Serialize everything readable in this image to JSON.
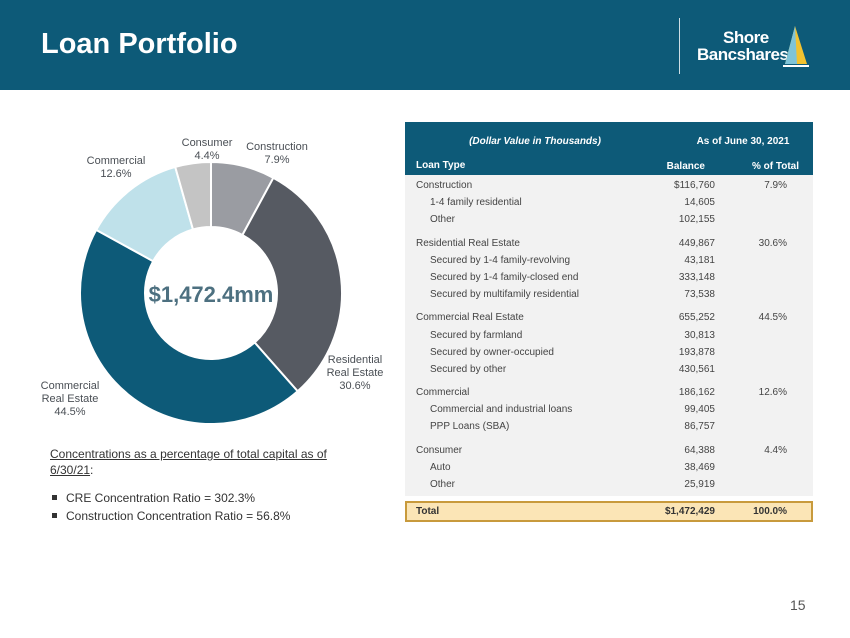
{
  "header": {
    "title": "Loan Portfolio"
  },
  "logo": {
    "line1": "Shore",
    "line2": "Bancshares"
  },
  "chart_data": {
    "type": "pie",
    "center_label": "$1,472.4mm",
    "slices": [
      {
        "name": "Construction",
        "label": "Construction",
        "pct_label": "7.9%",
        "value": 7.9,
        "color": "#9a9ca2"
      },
      {
        "name": "Residential Real Estate",
        "label": "Residential Real Estate",
        "pct_label": "30.6%",
        "value": 30.6,
        "color": "#565a62"
      },
      {
        "name": "Commercial Real Estate",
        "label": "Commercial Real Estate",
        "pct_label": "44.5%",
        "value": 44.5,
        "color": "#0d5a78"
      },
      {
        "name": "Commercial",
        "label": "Commercial",
        "pct_label": "12.6%",
        "value": 12.6,
        "color": "#bfe1ea"
      },
      {
        "name": "Consumer",
        "label": "Consumer",
        "pct_label": "4.4%",
        "value": 4.4,
        "color": "#c4c4c4"
      }
    ]
  },
  "notes": {
    "lead_text": "Concentrations as a percentage of total capital as of 6/30/21",
    "lead_suffix": ":",
    "bullets": [
      "CRE Concentration Ratio = 302.3%",
      "Construction Concentration Ratio = 56.8%"
    ]
  },
  "table": {
    "header": {
      "dollar_note": "(Dollar Value in Thousands)",
      "as_of": "As of June 30, 2021",
      "col_type": "Loan Type",
      "col_balance": "Balance",
      "col_pct": "% of Total"
    },
    "rows": [
      {
        "label": "Construction",
        "balance": "$116,760",
        "pct": "7.9%",
        "sub": false
      },
      {
        "label": "1-4 family residential",
        "balance": "14,605",
        "pct": "",
        "sub": true
      },
      {
        "label": "Other",
        "balance": "102,155",
        "pct": "",
        "sub": true
      },
      {
        "label": "Residential Real Estate",
        "balance": "449,867",
        "pct": "30.6%",
        "sub": false
      },
      {
        "label": "Secured by 1-4 family-revolving",
        "balance": "43,181",
        "pct": "",
        "sub": true
      },
      {
        "label": "Secured by 1-4 family-closed end",
        "balance": "333,148",
        "pct": "",
        "sub": true
      },
      {
        "label": "Secured by multifamily residential",
        "balance": "73,538",
        "pct": "",
        "sub": true
      },
      {
        "label": "Commercial Real Estate",
        "balance": "655,252",
        "pct": "44.5%",
        "sub": false
      },
      {
        "label": "Secured by farmland",
        "balance": "30,813",
        "pct": "",
        "sub": true
      },
      {
        "label": "Secured by owner-occupied",
        "balance": "193,878",
        "pct": "",
        "sub": true
      },
      {
        "label": "Secured by other",
        "balance": "430,561",
        "pct": "",
        "sub": true
      },
      {
        "label": "Commercial",
        "balance": "186,162",
        "pct": "12.6%",
        "sub": false
      },
      {
        "label": "Commercial and industrial loans",
        "balance": "99,405",
        "pct": "",
        "sub": true
      },
      {
        "label": "PPP Loans (SBA)",
        "balance": "86,757",
        "pct": "",
        "sub": true
      },
      {
        "label": "Consumer",
        "balance": "64,388",
        "pct": "4.4%",
        "sub": false
      },
      {
        "label": "Auto",
        "balance": "38,469",
        "pct": "",
        "sub": true
      },
      {
        "label": "Other",
        "balance": "25,919",
        "pct": "",
        "sub": true
      }
    ],
    "total": {
      "label": "Total",
      "balance": "$1,472,429",
      "pct": "100.0%"
    }
  },
  "footer": {
    "page_number": "15"
  }
}
